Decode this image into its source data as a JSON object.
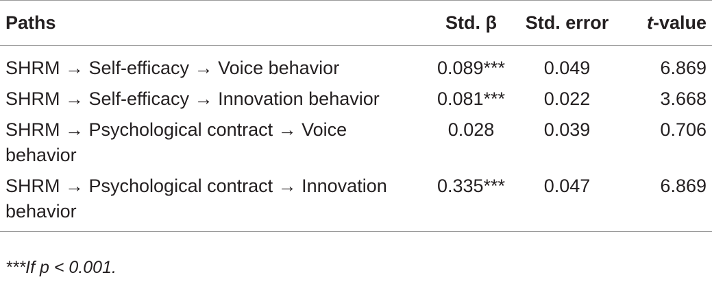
{
  "table": {
    "headers": {
      "paths": "Paths",
      "std_beta": "Std. β",
      "std_error": "Std. error",
      "t_value_italic": "t",
      "t_value_rest": "-value"
    },
    "rows": [
      {
        "path": "SHRM → Self-efficacy → Voice behavior",
        "std_beta": "0.089***",
        "std_error": "0.049",
        "t_value": "6.869"
      },
      {
        "path": "SHRM → Self-efficacy → Innovation behavior",
        "std_beta": "0.081***",
        "std_error": "0.022",
        "t_value": "3.668"
      },
      {
        "path": "SHRM → Psychological contract → Voice behavior",
        "std_beta": "0.028",
        "std_error": "0.039",
        "t_value": "0.706"
      },
      {
        "path": "SHRM → Psychological contract → Innovation behavior",
        "std_beta": "0.335***",
        "std_error": "0.047",
        "t_value": "6.869"
      }
    ],
    "footnote": "***If p < 0.001."
  }
}
